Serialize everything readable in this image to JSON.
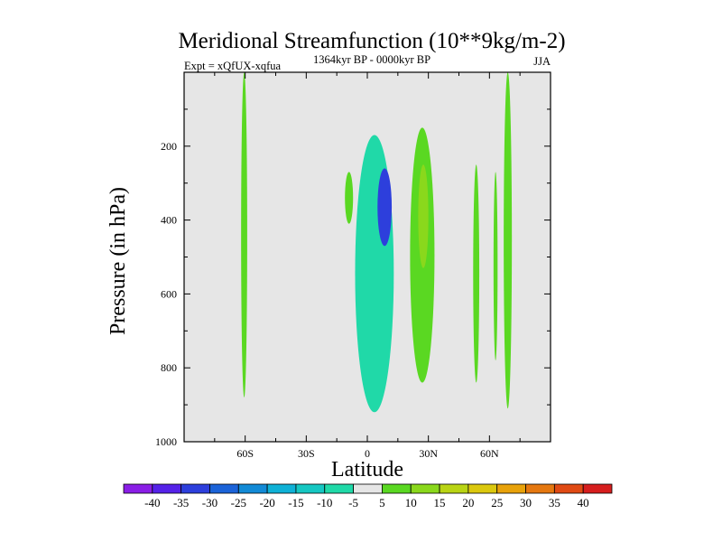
{
  "chart_data": {
    "type": "heatmap",
    "subtype": "filled-contour",
    "title": "Meridional Streamfunction (10**9kg/m-2)",
    "left_label": "Expt = xQfUX-xqfua",
    "center_label": "1364kyr BP - 0000kyr BP",
    "right_label": "JJA",
    "xlabel": "Latitude",
    "ylabel": "Pressure (in hPa)",
    "xlim": [
      -90,
      90
    ],
    "ylim": [
      1000,
      0
    ],
    "x_ticks": [
      {
        "value": -60,
        "label": "60S"
      },
      {
        "value": -30,
        "label": "30S"
      },
      {
        "value": 0,
        "label": "0"
      },
      {
        "value": 30,
        "label": "30N"
      },
      {
        "value": 60,
        "label": "60N"
      }
    ],
    "y_ticks": [
      {
        "value": 200,
        "label": "200"
      },
      {
        "value": 400,
        "label": "400"
      },
      {
        "value": 600,
        "label": "600"
      },
      {
        "value": 800,
        "label": "800"
      },
      {
        "value": 1000,
        "label": "1000"
      }
    ],
    "colorbar": {
      "labels": [
        "-40",
        "-35",
        "-30",
        "-25",
        "-20",
        "-15",
        "-10",
        "-5",
        "5",
        "10",
        "15",
        "20",
        "25",
        "30",
        "35",
        "40"
      ],
      "colors": [
        "#8a1ee6",
        "#5522e8",
        "#2d3fdc",
        "#1b63d8",
        "#128ad6",
        "#0fb1d6",
        "#16c7c2",
        "#20d9a8",
        "#e6e6e6",
        "#5ad822",
        "#8ad81c",
        "#b9d414",
        "#dbc80e",
        "#e8a20a",
        "#e57810",
        "#e04a14",
        "#d61e1e"
      ]
    },
    "background_color": "#e6e6e6",
    "contour_regions": [
      {
        "name": "sh-high-lat-positive",
        "level": 5,
        "lat_range": [
          -62,
          -59
        ],
        "p_range": [
          0,
          880
        ]
      },
      {
        "name": "small-positive-near-10s",
        "level": 5,
        "lat_range": [
          -11,
          -7
        ],
        "p_range": [
          270,
          410
        ]
      },
      {
        "name": "tropical-negative-cell",
        "level": -10,
        "lat_range": [
          -6,
          13
        ],
        "p_range": [
          170,
          920
        ]
      },
      {
        "name": "tropical-negative-core",
        "level": -35,
        "lat_range": [
          5,
          12
        ],
        "p_range": [
          260,
          470
        ]
      },
      {
        "name": "subtropical-positive-cell",
        "level": 5,
        "lat_range": [
          21,
          33
        ],
        "p_range": [
          150,
          840
        ]
      },
      {
        "name": "subtropical-positive-core",
        "level": 10,
        "lat_range": [
          25,
          30
        ],
        "p_range": [
          250,
          530
        ]
      },
      {
        "name": "nh-midlat-positive",
        "level": 5,
        "lat_range": [
          52,
          55
        ],
        "p_range": [
          250,
          840
        ]
      },
      {
        "name": "nh-thin-positive",
        "level": 5,
        "lat_range": [
          62,
          64
        ],
        "p_range": [
          270,
          780
        ]
      },
      {
        "name": "nh-high-lat-positive",
        "level": 5,
        "lat_range": [
          67,
          71
        ],
        "p_range": [
          0,
          910
        ]
      }
    ]
  }
}
